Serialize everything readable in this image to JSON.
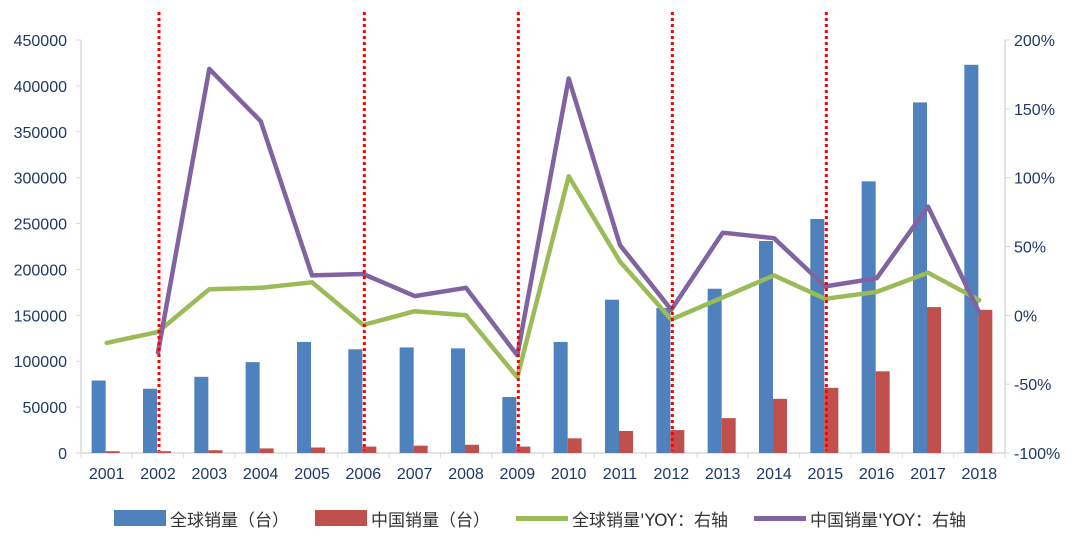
{
  "chart_data": {
    "type": "bar+line",
    "title": "",
    "categories": [
      "2001",
      "2002",
      "2003",
      "2004",
      "2005",
      "2006",
      "2007",
      "2008",
      "2009",
      "2010",
      "2011",
      "2012",
      "2013",
      "2014",
      "2015",
      "2016",
      "2017",
      "2018"
    ],
    "series": [
      {
        "name": "全球销量（台）",
        "type": "bar",
        "axis": "left",
        "color": "#4F81BD",
        "values": [
          79000,
          70000,
          83000,
          99000,
          121000,
          113000,
          115000,
          114000,
          61000,
          121000,
          167000,
          158000,
          179000,
          231000,
          255000,
          296000,
          382000,
          423000
        ]
      },
      {
        "name": "中国销量（台）",
        "type": "bar",
        "axis": "left",
        "color": "#C0504D",
        "values": [
          2000,
          2000,
          3000,
          5000,
          6000,
          7000,
          8000,
          9000,
          7000,
          16000,
          24000,
          25000,
          38000,
          59000,
          71000,
          89000,
          159000,
          156000
        ]
      },
      {
        "name": "全球销量'YOY：右轴",
        "type": "line",
        "axis": "right",
        "color": "#9BBB59",
        "values": [
          -20,
          -12,
          19,
          20,
          24,
          -7,
          3,
          0,
          -45,
          101,
          39,
          -3,
          13,
          29,
          12,
          17,
          31,
          11
        ]
      },
      {
        "name": "中国销量'YOY：右轴",
        "type": "line",
        "axis": "right",
        "color": "#8064A2",
        "values": [
          null,
          -27,
          179,
          141,
          29,
          30,
          14,
          20,
          -29,
          172,
          51,
          4,
          60,
          56,
          21,
          27,
          79,
          2
        ]
      }
    ],
    "left_axis": {
      "min": 0,
      "max": 450000,
      "step": 50000,
      "ticks": [
        "0",
        "50000",
        "100000",
        "150000",
        "200000",
        "250000",
        "300000",
        "350000",
        "400000",
        "450000"
      ]
    },
    "right_axis": {
      "min": -100,
      "max": 200,
      "step": 50,
      "unit": "%",
      "ticks": [
        "-100%",
        "-50%",
        "0%",
        "50%",
        "100%",
        "150%",
        "200%"
      ]
    },
    "annotations": {
      "vertical_dotted_lines_at": [
        "2002",
        "2006",
        "2009",
        "2012",
        "2015"
      ],
      "color": "#FF0000"
    },
    "xlabel": "",
    "ylabel": "",
    "grid": false,
    "legend_position": "bottom"
  },
  "legend": [
    {
      "label": "全球销量（台）",
      "kind": "bar",
      "color": "#4F81BD"
    },
    {
      "label": "中国销量（台）",
      "kind": "bar",
      "color": "#C0504D"
    },
    {
      "label": "全球销量'YOY：右轴",
      "kind": "line",
      "color": "#9BBB59"
    },
    {
      "label": "中国销量'YOY：右轴",
      "kind": "line",
      "color": "#8064A2"
    }
  ]
}
